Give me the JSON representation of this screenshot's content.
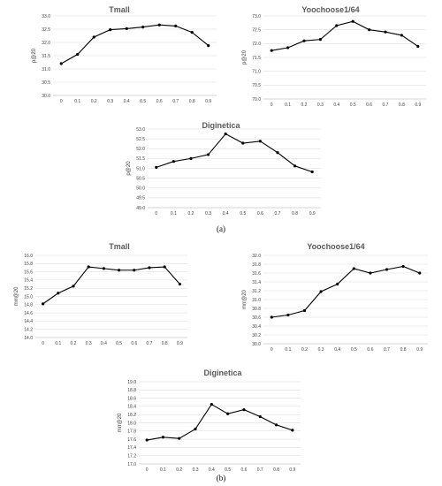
{
  "captions": {
    "a": "(a)",
    "b": "(b)"
  },
  "chart_data": [
    {
      "type": "line",
      "title": "Tmall",
      "ylabel": "p@20",
      "xlabel": "",
      "x": [
        "0",
        "0.1",
        "0.2",
        "0.3",
        "0.4",
        "0.5",
        "0.6",
        "0.7",
        "0.8",
        "0.9"
      ],
      "values": [
        31.2,
        31.55,
        32.2,
        32.48,
        32.52,
        32.58,
        32.66,
        32.62,
        32.38,
        31.88
      ],
      "ylim": [
        30.0,
        33.0
      ],
      "yticks": [
        "30.0",
        "30.5",
        "31.0",
        "31.5",
        "32.0",
        "32.5",
        "33.0"
      ],
      "grid": true,
      "legend": "none"
    },
    {
      "type": "line",
      "title": "Yoochoose1/64",
      "ylabel": "p@20",
      "xlabel": "",
      "x": [
        "0",
        "0.1",
        "0.2",
        "0.3",
        "0.4",
        "0.5",
        "0.6",
        "0.7",
        "0.8",
        "0.9"
      ],
      "values": [
        71.75,
        71.85,
        72.1,
        72.15,
        72.65,
        72.8,
        72.5,
        72.42,
        72.3,
        71.9
      ],
      "ylim": [
        70.0,
        73.0
      ],
      "yticks": [
        "70.0",
        "70.5",
        "71.0",
        "71.5",
        "72.0",
        "72.5",
        "73.0"
      ],
      "grid": true,
      "legend": "none"
    },
    {
      "type": "line",
      "title": "Diginetica",
      "ylabel": "p@20",
      "xlabel": "",
      "x": [
        "0",
        "0.1",
        "0.2",
        "0.3",
        "0.4",
        "0.5",
        "0.6",
        "0.7",
        "0.8",
        "0.9"
      ],
      "values": [
        51.05,
        51.35,
        51.5,
        51.7,
        52.75,
        52.28,
        52.38,
        51.8,
        51.12,
        50.82
      ],
      "ylim": [
        49.0,
        53.0
      ],
      "yticks": [
        "49.0",
        "49.5",
        "50.0",
        "50.5",
        "51.0",
        "51.5",
        "52.0",
        "52.5",
        "53.0"
      ],
      "grid": true,
      "legend": "none"
    },
    {
      "type": "line",
      "title": "Tmall",
      "ylabel": "mrr@20",
      "xlabel": "",
      "x": [
        "0",
        "0.1",
        "0.2",
        "0.3",
        "0.4",
        "0.5",
        "0.6",
        "0.7",
        "0.8",
        "0.9"
      ],
      "values": [
        14.82,
        15.08,
        15.25,
        15.72,
        15.68,
        15.64,
        15.64,
        15.7,
        15.72,
        15.3
      ],
      "ylim": [
        14.0,
        16.0
      ],
      "yticks": [
        "14.0",
        "14.2",
        "14.4",
        "14.6",
        "14.8",
        "15.0",
        "15.2",
        "15.4",
        "15.6",
        "15.8",
        "16.0"
      ],
      "grid": true,
      "legend": "none"
    },
    {
      "type": "line",
      "title": "Yoochoose1/64",
      "ylabel": "mrr@20",
      "xlabel": "",
      "x": [
        "0",
        "0.1",
        "0.2",
        "0.3",
        "0.4",
        "0.5",
        "0.6",
        "0.7",
        "0.8",
        "0.9"
      ],
      "values": [
        30.6,
        30.65,
        30.75,
        31.18,
        31.35,
        31.7,
        31.6,
        31.68,
        31.75,
        31.6
      ],
      "ylim": [
        30.0,
        32.0
      ],
      "yticks": [
        "30.0",
        "30.2",
        "30.4",
        "30.6",
        "30.8",
        "31.0",
        "31.2",
        "31.4",
        "31.6",
        "31.8",
        "32.0"
      ],
      "grid": true,
      "legend": "none"
    },
    {
      "type": "line",
      "title": "Diginetica",
      "ylabel": "mrr@20",
      "xlabel": "",
      "x": [
        "0",
        "0.1",
        "0.2",
        "0.3",
        "0.4",
        "0.5",
        "0.6",
        "0.7",
        "0.8",
        "0.9"
      ],
      "values": [
        17.58,
        17.65,
        17.62,
        17.85,
        18.45,
        18.22,
        18.32,
        18.15,
        17.95,
        17.82
      ],
      "ylim": [
        17.0,
        19.0
      ],
      "yticks": [
        "17.0",
        "17.2",
        "17.4",
        "17.6",
        "17.8",
        "18.0",
        "18.2",
        "18.4",
        "18.6",
        "18.8",
        "19.0"
      ],
      "grid": true,
      "legend": "none"
    }
  ]
}
